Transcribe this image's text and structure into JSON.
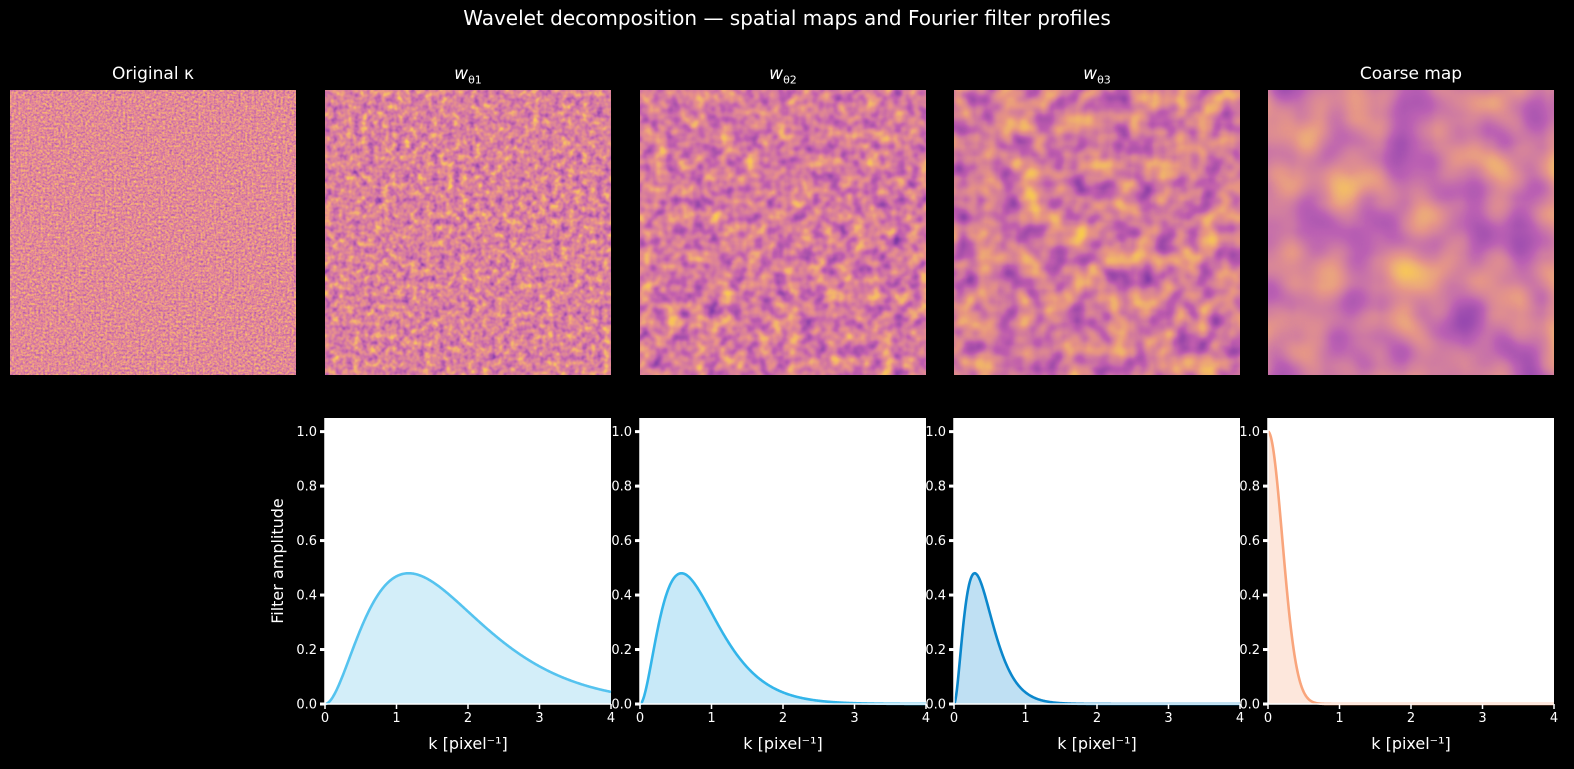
{
  "figure": {
    "suptitle": "Wavelet decomposition — spatial maps and Fourier filter profiles"
  },
  "maps": [
    {
      "title": "Original κ",
      "scale": 2.2
    },
    {
      "title_base": "w",
      "title_sub": "θ1",
      "scale": 4
    },
    {
      "title_base": "w",
      "title_sub": "θ2",
      "scale": 7
    },
    {
      "title_base": "w",
      "title_sub": "θ3",
      "scale": 11
    },
    {
      "title": "Coarse map",
      "scale": 24
    }
  ],
  "colors": {
    "background": "#000000",
    "inferno_low": "#1b0c41",
    "inferno_mid": "#c73c4f",
    "inferno_high": "#fcffa4",
    "filter1": "#55c3ef",
    "filter2": "#33b5ea",
    "filter3": "#0b87cc",
    "coarse": "#f9a57c"
  },
  "chart_data": [
    {
      "type": "area",
      "title": "",
      "xlabel": "k [pixel⁻¹]",
      "ylabel": "Filter amplitude",
      "xlim": [
        0,
        4
      ],
      "ylim": [
        0,
        1.05
      ],
      "x_ticks": [
        "0",
        "1",
        "2",
        "3",
        "4"
      ],
      "y_ticks": [
        "0.0",
        "0.2",
        "0.4",
        "0.6",
        "0.8",
        "1.0"
      ],
      "series": [
        {
          "shape": "band",
          "peak_x": 1.17,
          "peak_y": 0.48,
          "fill": "#d3eef9",
          "line": "#55c3ef"
        }
      ]
    },
    {
      "type": "area",
      "title": "",
      "xlabel": "k [pixel⁻¹]",
      "ylabel": "",
      "xlim": [
        0,
        4
      ],
      "ylim": [
        0,
        1.05
      ],
      "x_ticks": [
        "0",
        "1",
        "2",
        "3",
        "4"
      ],
      "y_ticks": [
        "0.0",
        "0.2",
        "0.4",
        "0.6",
        "0.8",
        "1.0"
      ],
      "series": [
        {
          "shape": "band",
          "peak_x": 0.58,
          "peak_y": 0.48,
          "fill": "#c8e9f8",
          "line": "#33b5ea"
        }
      ]
    },
    {
      "type": "area",
      "title": "",
      "xlabel": "k [pixel⁻¹]",
      "ylabel": "",
      "xlim": [
        0,
        4
      ],
      "ylim": [
        0,
        1.05
      ],
      "x_ticks": [
        "0",
        "1",
        "2",
        "3",
        "4"
      ],
      "y_ticks": [
        "0.0",
        "0.2",
        "0.4",
        "0.6",
        "0.8",
        "1.0"
      ],
      "series": [
        {
          "shape": "band",
          "peak_x": 0.29,
          "peak_y": 0.48,
          "fill": "#bfe0f3",
          "line": "#0b87cc"
        }
      ]
    },
    {
      "type": "area",
      "title": "",
      "xlabel": "k [pixel⁻¹]",
      "ylabel": "",
      "xlim": [
        0,
        4
      ],
      "ylim": [
        0,
        1.05
      ],
      "x_ticks": [
        "0",
        "1",
        "2",
        "3",
        "4"
      ],
      "y_ticks": [
        "0.0",
        "0.2",
        "0.4",
        "0.6",
        "0.8",
        "1.0"
      ],
      "series": [
        {
          "shape": "lowpass",
          "peak_x": 0,
          "peak_y": 1.0,
          "width": 0.2,
          "fill": "#fde7dc",
          "line": "#f9a57c"
        }
      ]
    }
  ]
}
